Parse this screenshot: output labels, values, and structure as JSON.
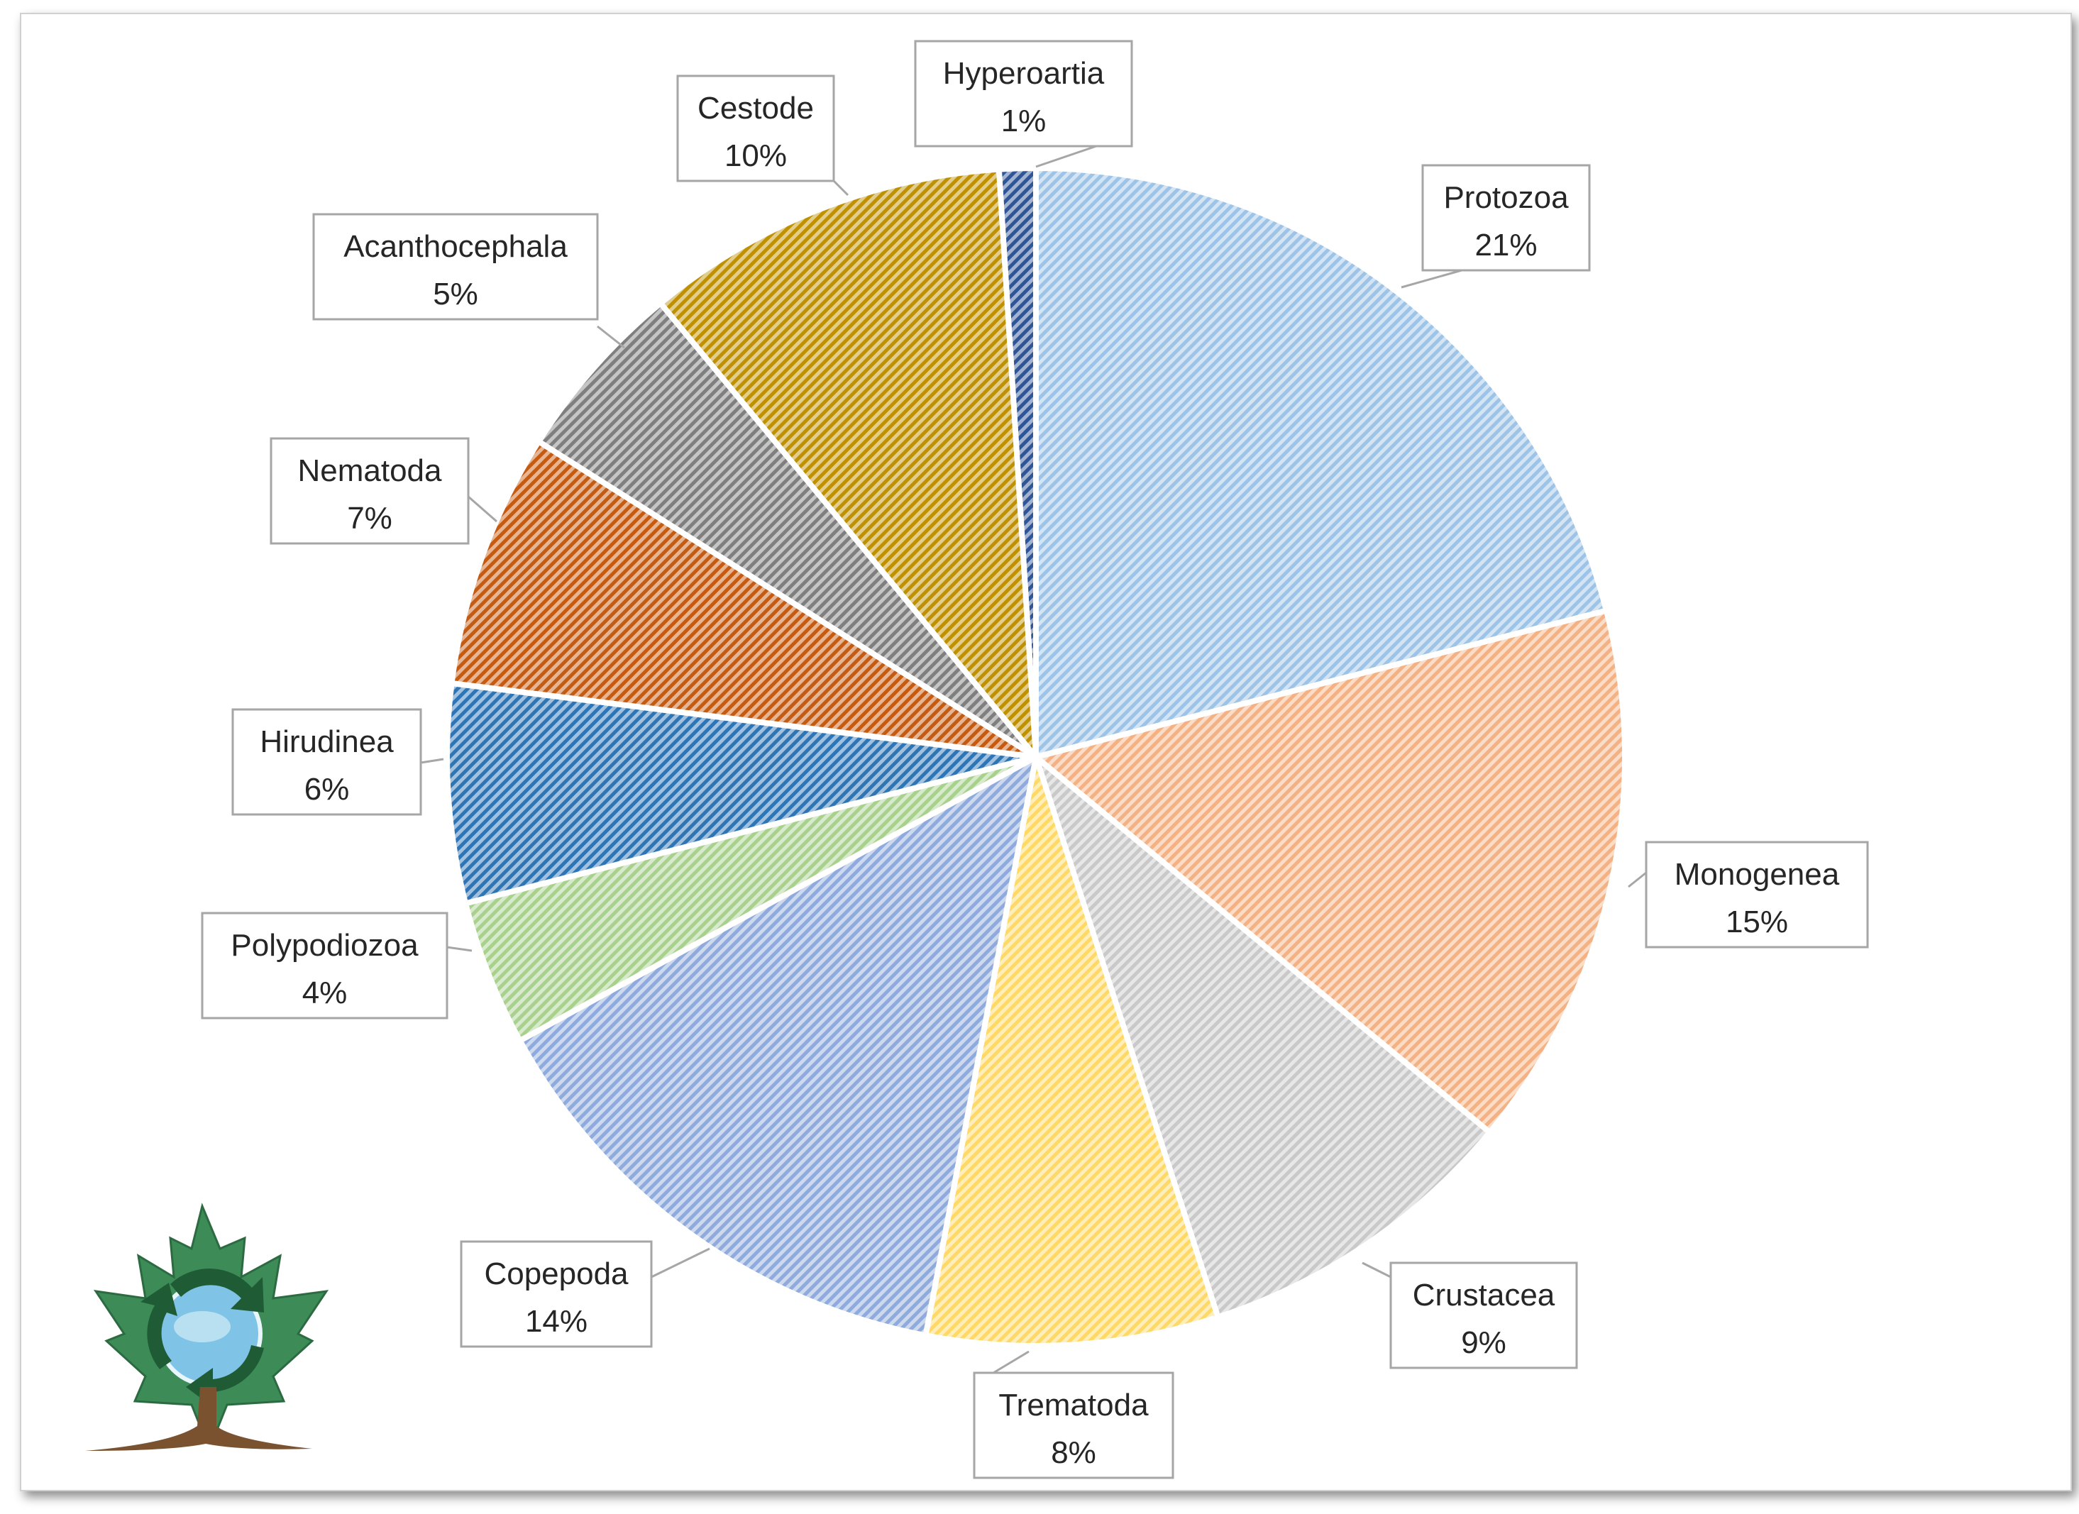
{
  "chart_data": {
    "type": "pie",
    "title": "",
    "start_angle_deg": 0,
    "direction": "clockwise",
    "slices": [
      {
        "label": "Protozoa",
        "percent_label": "21%",
        "value": 21,
        "color": "#9dc3e6"
      },
      {
        "label": "Monogenea",
        "percent_label": "15%",
        "value": 15,
        "color": "#f4b183"
      },
      {
        "label": "Crustacea",
        "percent_label": "9%",
        "value": 9,
        "color": "#c9c9c9"
      },
      {
        "label": "Trematoda",
        "percent_label": "8%",
        "value": 8,
        "color": "#ffd966"
      },
      {
        "label": "Copepoda",
        "percent_label": "14%",
        "value": 14,
        "color": "#8faadc"
      },
      {
        "label": "Polypodiozoa",
        "percent_label": "4%",
        "value": 4,
        "color": "#a9d18e"
      },
      {
        "label": "Hirudinea",
        "percent_label": "6%",
        "value": 6,
        "color": "#2e75b6"
      },
      {
        "label": "Nematoda",
        "percent_label": "7%",
        "value": 7,
        "color": "#c55a11"
      },
      {
        "label": "Acanthocephala",
        "percent_label": "5%",
        "value": 5,
        "color": "#7f7f7f"
      },
      {
        "label": "Cestode",
        "percent_label": "10%",
        "value": 10,
        "color": "#bf9000"
      },
      {
        "label": "Hyperoartia",
        "percent_label": "1%",
        "value": 1,
        "color": "#2f5597"
      }
    ],
    "legend": "none",
    "data_labels": "callout boxes with category name and percentage"
  },
  "logo": {
    "icon": "leaf-globe-recycle-logo"
  }
}
